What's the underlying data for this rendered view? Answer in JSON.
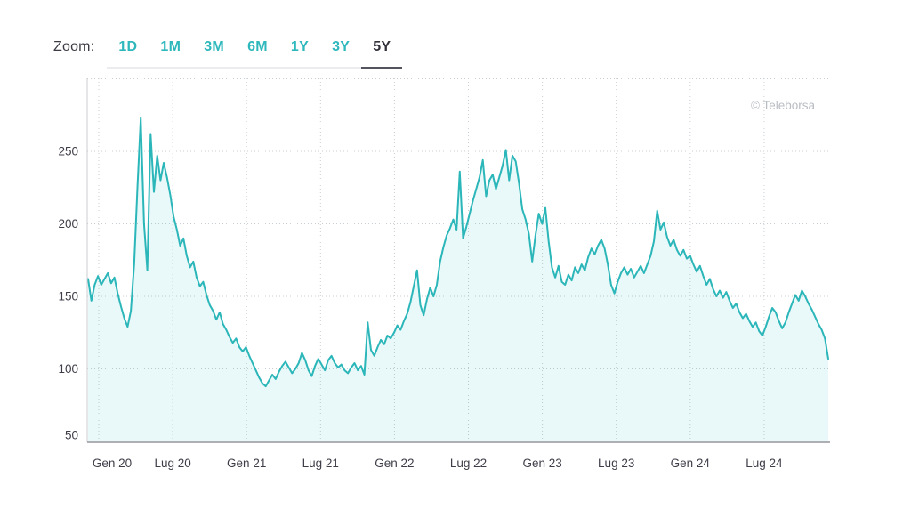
{
  "header": {
    "zoom_label": "Zoom:",
    "ranges": [
      {
        "label": "1D",
        "active": false
      },
      {
        "label": "1M",
        "active": false
      },
      {
        "label": "3M",
        "active": false
      },
      {
        "label": "6M",
        "active": false
      },
      {
        "label": "1Y",
        "active": false
      },
      {
        "label": "3Y",
        "active": false
      },
      {
        "label": "5Y",
        "active": true
      }
    ]
  },
  "watermark": "© Teleborsa",
  "colors": {
    "accent_teal": "#2eb8bc",
    "line": "#2bb6b9",
    "area_fill": "rgba(43,182,185,0.10)",
    "active_tab_text": "#30303a",
    "active_tab_underline": "#54545e",
    "tab_strip": "#ececef",
    "grid_dots": "#c9ced2",
    "axis_left": "#ccced3",
    "axis_bottom": "#aeaeb5",
    "tick_text": "#3e3e49",
    "watermark_text": "#b9bdc3"
  },
  "chart_data": {
    "type": "area",
    "title": "",
    "x_tick_labels": [
      "Gen 20",
      "Lug 20",
      "Gen 21",
      "Lug 21",
      "Gen 22",
      "Lug 22",
      "Gen 23",
      "Lug 23",
      "Gen 24",
      "Lug 24"
    ],
    "y_ticks": [
      50,
      100,
      150,
      200,
      250
    ],
    "y_gridlines": [
      100,
      150,
      200,
      250,
      300
    ],
    "ylim": [
      50,
      300
    ],
    "grid": true,
    "legend": "none",
    "watermark": "© Teleborsa",
    "series": [
      {
        "name": "",
        "values": [
          162,
          147,
          158,
          164,
          158,
          162,
          166,
          159,
          163,
          152,
          143,
          135,
          129,
          140,
          172,
          225,
          273,
          200,
          168,
          262,
          222,
          247,
          230,
          242,
          232,
          220,
          205,
          196,
          185,
          190,
          178,
          170,
          174,
          163,
          157,
          160,
          151,
          144,
          140,
          134,
          139,
          131,
          127,
          122,
          118,
          121,
          115,
          112,
          115,
          109,
          104,
          99,
          94,
          90,
          88,
          92,
          96,
          93,
          98,
          102,
          105,
          101,
          97,
          100,
          104,
          111,
          106,
          99,
          95,
          102,
          107,
          103,
          99,
          106,
          109,
          104,
          101,
          103,
          99,
          97,
          101,
          104,
          99,
          102,
          96,
          132,
          113,
          109,
          115,
          120,
          117,
          123,
          121,
          125,
          130,
          127,
          133,
          138,
          146,
          157,
          168,
          144,
          137,
          148,
          156,
          150,
          158,
          174,
          184,
          192,
          197,
          203,
          196,
          236,
          190,
          198,
          207,
          216,
          224,
          232,
          244,
          219,
          230,
          234,
          224,
          232,
          240,
          251,
          230,
          247,
          243,
          228,
          210,
          203,
          193,
          174,
          192,
          207,
          200,
          211,
          188,
          170,
          163,
          171,
          160,
          158,
          165,
          161,
          170,
          166,
          172,
          168,
          177,
          183,
          179,
          185,
          189,
          183,
          172,
          158,
          152,
          160,
          166,
          170,
          165,
          169,
          163,
          167,
          171,
          166,
          172,
          178,
          188,
          209,
          196,
          201,
          191,
          185,
          189,
          182,
          178,
          182,
          176,
          178,
          172,
          167,
          171,
          164,
          158,
          162,
          155,
          150,
          154,
          149,
          153,
          147,
          142,
          145,
          139,
          135,
          138,
          133,
          129,
          132,
          126,
          123,
          129,
          136,
          142,
          139,
          133,
          128,
          132,
          139,
          145,
          151,
          147,
          154,
          150,
          145,
          141,
          136,
          131,
          127,
          121,
          107
        ]
      }
    ]
  }
}
